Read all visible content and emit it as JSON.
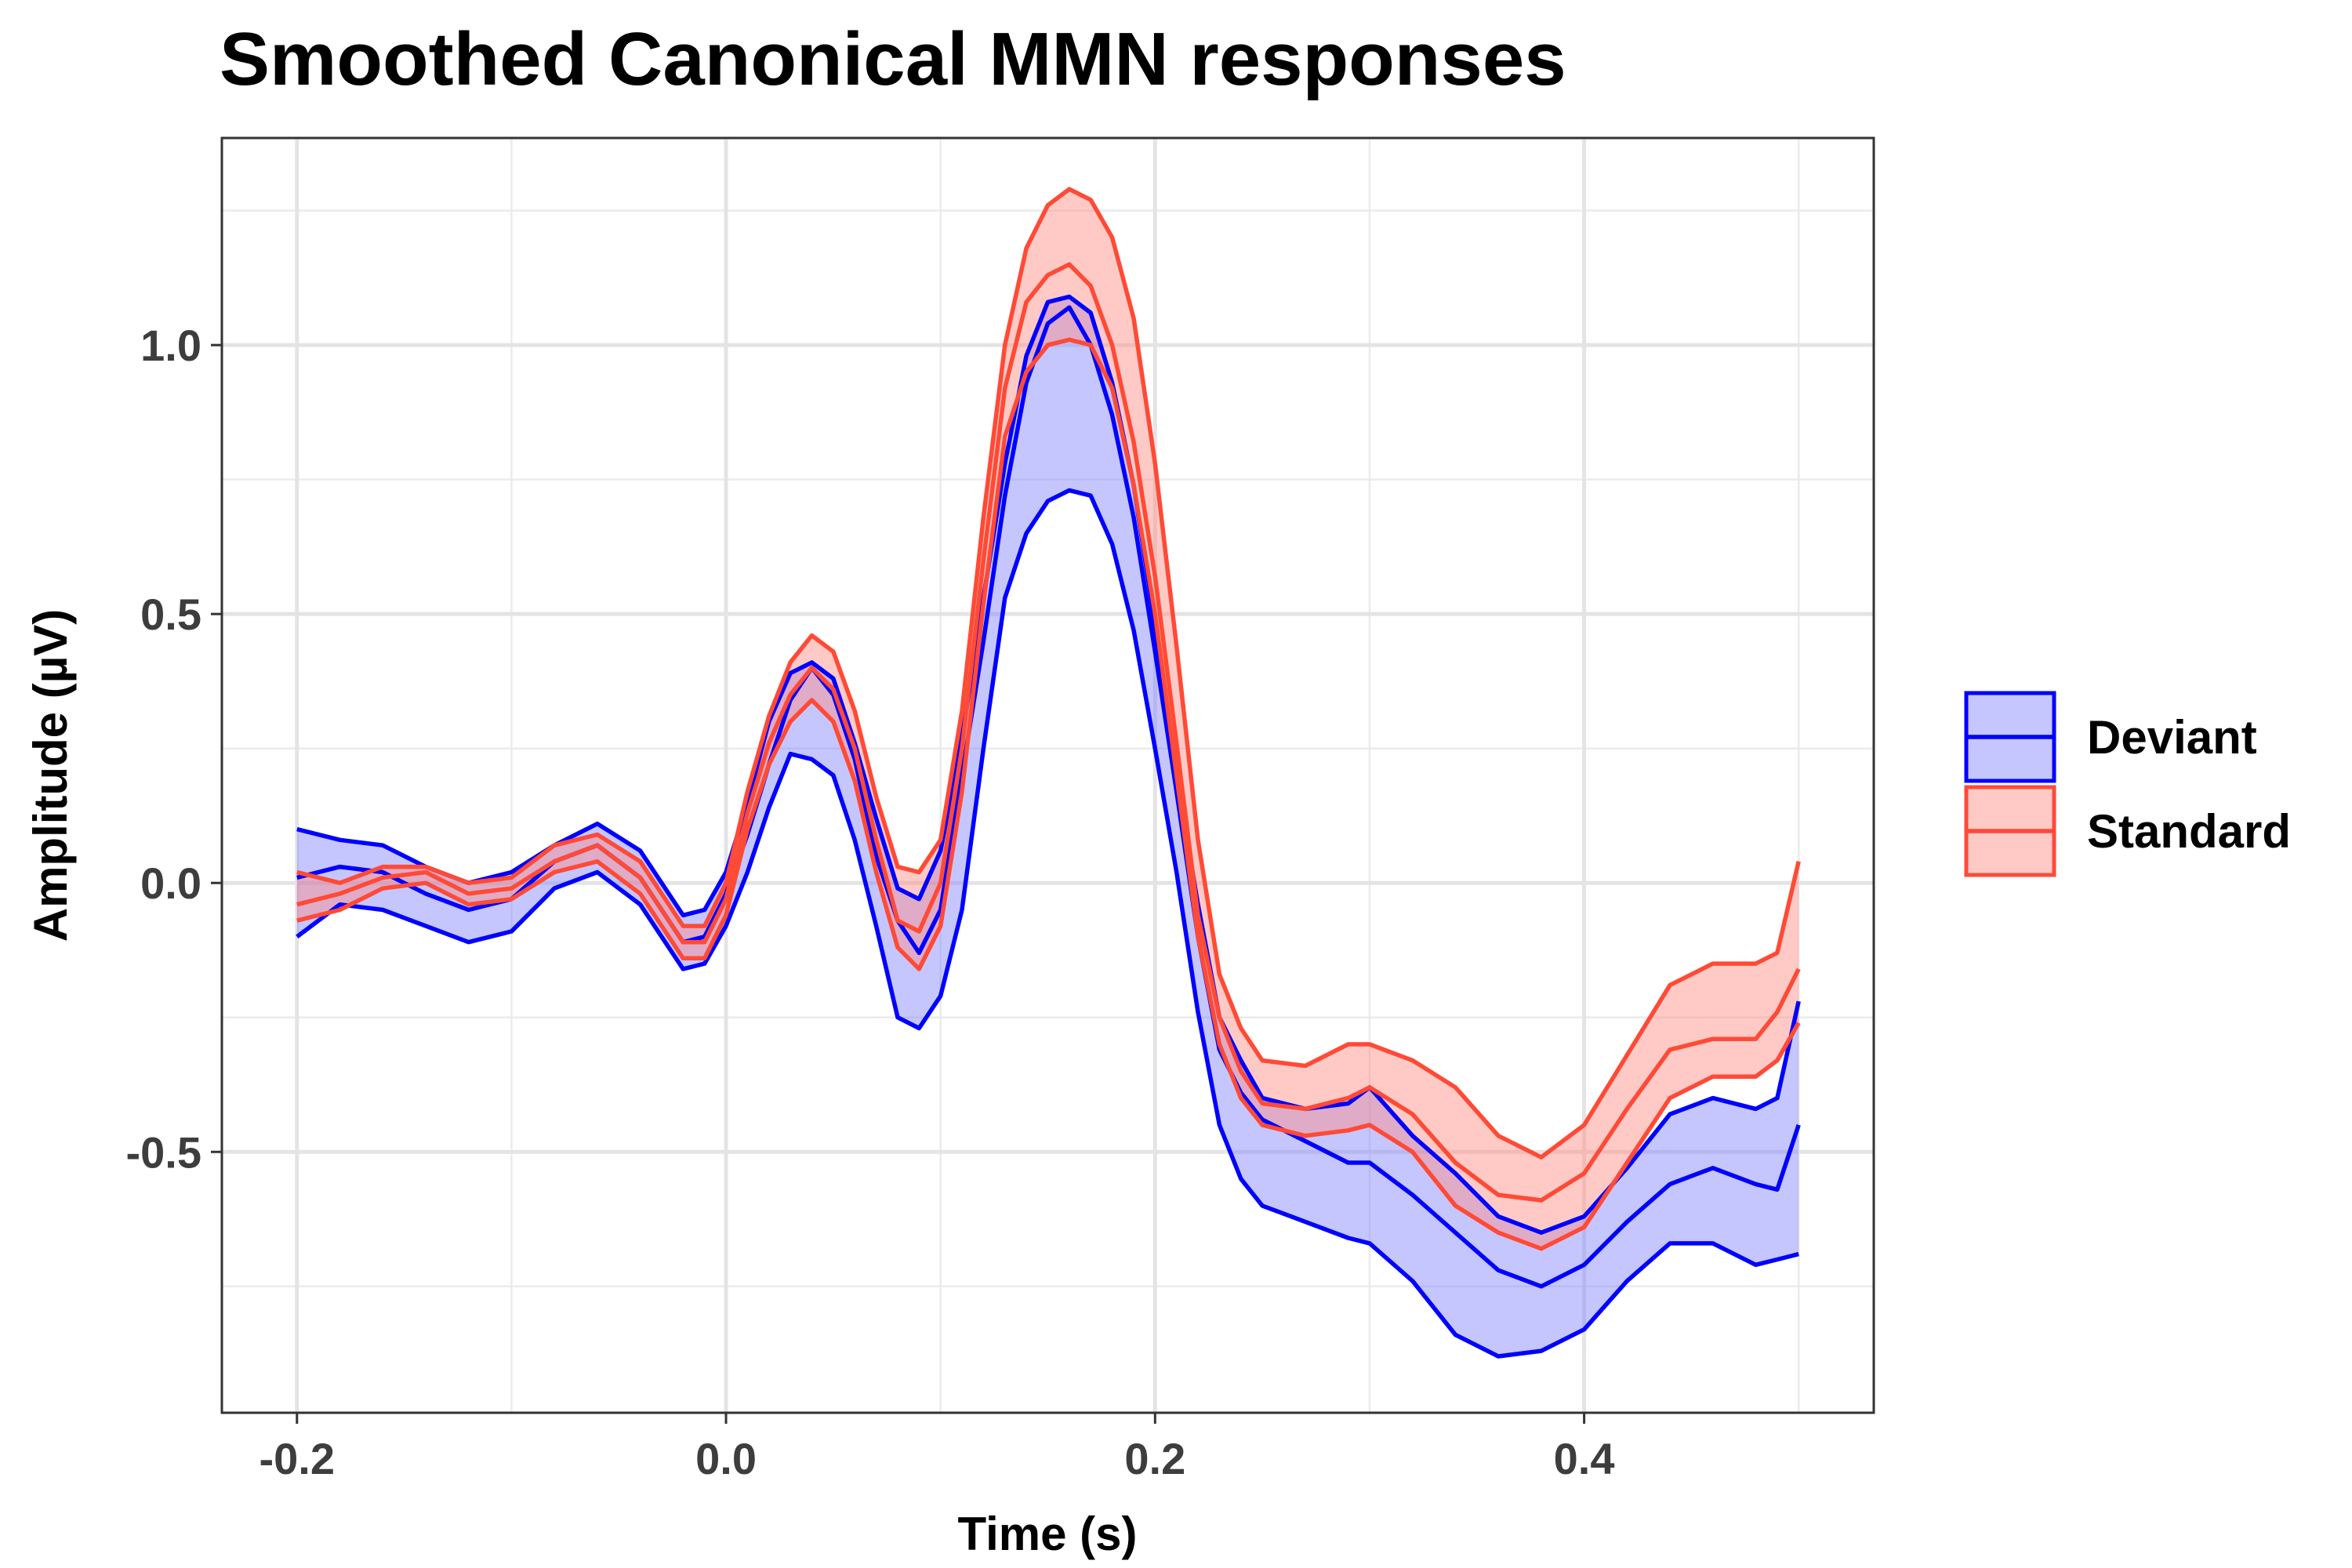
{
  "chart_data": {
    "type": "line",
    "title": "Smoothed Canonical MMN responses",
    "xlabel": "Time (s)",
    "ylabel": "Amplitude (µV)",
    "xlim": [
      -0.235,
      0.535
    ],
    "ylim": [
      -0.985,
      1.385
    ],
    "x_ticks": [
      -0.2,
      0.0,
      0.2,
      0.4
    ],
    "x_tick_labels": [
      "-0.2",
      "0.0",
      "0.2",
      "0.4"
    ],
    "y_ticks": [
      -0.5,
      0.0,
      0.5,
      1.0
    ],
    "y_tick_labels": [
      "-0.5",
      "0.0",
      "0.5",
      "1.0"
    ],
    "grid": true,
    "legend_position": "right",
    "series": [
      {
        "name": "Deviant",
        "line_color": "#0000ff",
        "fill_color": "#8080ff",
        "points": [
          [
            -0.2,
            0.01,
            -0.1,
            0.1
          ],
          [
            -0.18,
            0.03,
            -0.04,
            0.08
          ],
          [
            -0.16,
            0.02,
            -0.05,
            0.07
          ],
          [
            -0.14,
            -0.02,
            -0.08,
            0.03
          ],
          [
            -0.12,
            -0.05,
            -0.11,
            0.0
          ],
          [
            -0.1,
            -0.03,
            -0.09,
            0.02
          ],
          [
            -0.08,
            0.04,
            -0.01,
            0.07
          ],
          [
            -0.06,
            0.07,
            0.02,
            0.11
          ],
          [
            -0.04,
            0.01,
            -0.04,
            0.06
          ],
          [
            -0.02,
            -0.11,
            -0.16,
            -0.06
          ],
          [
            -0.01,
            -0.1,
            -0.15,
            -0.05
          ],
          [
            0.0,
            -0.02,
            -0.08,
            0.02
          ],
          [
            0.01,
            0.09,
            0.02,
            0.15
          ],
          [
            0.02,
            0.22,
            0.14,
            0.3
          ],
          [
            0.03,
            0.34,
            0.24,
            0.39
          ],
          [
            0.04,
            0.4,
            0.23,
            0.41
          ],
          [
            0.05,
            0.35,
            0.2,
            0.38
          ],
          [
            0.06,
            0.23,
            0.08,
            0.26
          ],
          [
            0.07,
            0.05,
            -0.08,
            0.12
          ],
          [
            0.08,
            -0.07,
            -0.25,
            -0.01
          ],
          [
            0.09,
            -0.13,
            -0.27,
            -0.03
          ],
          [
            0.1,
            -0.05,
            -0.21,
            0.06
          ],
          [
            0.11,
            0.2,
            -0.05,
            0.27
          ],
          [
            0.12,
            0.45,
            0.25,
            0.53
          ],
          [
            0.13,
            0.72,
            0.53,
            0.78
          ],
          [
            0.14,
            0.93,
            0.65,
            0.98
          ],
          [
            0.15,
            1.04,
            0.71,
            1.08
          ],
          [
            0.16,
            1.07,
            0.73,
            1.09
          ],
          [
            0.17,
            1.0,
            0.72,
            1.06
          ],
          [
            0.18,
            0.87,
            0.63,
            0.93
          ],
          [
            0.19,
            0.68,
            0.47,
            0.74
          ],
          [
            0.2,
            0.43,
            0.25,
            0.48
          ],
          [
            0.21,
            0.17,
            0.02,
            0.2
          ],
          [
            0.22,
            -0.1,
            -0.24,
            -0.04
          ],
          [
            0.23,
            -0.31,
            -0.45,
            -0.25
          ],
          [
            0.24,
            -0.39,
            -0.55,
            -0.33
          ],
          [
            0.25,
            -0.44,
            -0.6,
            -0.4
          ],
          [
            0.27,
            -0.48,
            -0.63,
            -0.42
          ],
          [
            0.29,
            -0.52,
            -0.66,
            -0.41
          ],
          [
            0.3,
            -0.52,
            -0.67,
            -0.38
          ],
          [
            0.32,
            -0.58,
            -0.74,
            -0.47
          ],
          [
            0.34,
            -0.65,
            -0.84,
            -0.54
          ],
          [
            0.36,
            -0.72,
            -0.88,
            -0.62
          ],
          [
            0.38,
            -0.75,
            -0.87,
            -0.65
          ],
          [
            0.4,
            -0.71,
            -0.83,
            -0.62
          ],
          [
            0.42,
            -0.63,
            -0.74,
            -0.53
          ],
          [
            0.44,
            -0.56,
            -0.67,
            -0.43
          ],
          [
            0.46,
            -0.53,
            -0.67,
            -0.4
          ],
          [
            0.48,
            -0.56,
            -0.71,
            -0.42
          ],
          [
            0.49,
            -0.57,
            -0.7,
            -0.4
          ],
          [
            0.5,
            -0.45,
            -0.69,
            -0.22
          ]
        ]
      },
      {
        "name": "Standard",
        "line_color": "#ff4a36",
        "fill_color": "#ff8a80",
        "points": [
          [
            -0.2,
            -0.04,
            -0.07,
            0.02
          ],
          [
            -0.18,
            -0.02,
            -0.05,
            0.0
          ],
          [
            -0.16,
            0.01,
            -0.01,
            0.03
          ],
          [
            -0.14,
            0.02,
            0.0,
            0.03
          ],
          [
            -0.12,
            -0.02,
            -0.04,
            0.0
          ],
          [
            -0.1,
            -0.01,
            -0.03,
            0.01
          ],
          [
            -0.08,
            0.04,
            0.02,
            0.07
          ],
          [
            -0.06,
            0.07,
            0.04,
            0.09
          ],
          [
            -0.04,
            0.01,
            -0.02,
            0.04
          ],
          [
            -0.02,
            -0.11,
            -0.14,
            -0.08
          ],
          [
            -0.01,
            -0.11,
            -0.14,
            -0.08
          ],
          [
            0.0,
            -0.03,
            -0.06,
            0.0
          ],
          [
            0.01,
            0.13,
            0.1,
            0.17
          ],
          [
            0.02,
            0.26,
            0.22,
            0.31
          ],
          [
            0.03,
            0.35,
            0.3,
            0.41
          ],
          [
            0.04,
            0.4,
            0.34,
            0.46
          ],
          [
            0.05,
            0.36,
            0.3,
            0.43
          ],
          [
            0.06,
            0.25,
            0.19,
            0.32
          ],
          [
            0.07,
            0.08,
            0.02,
            0.16
          ],
          [
            0.08,
            -0.07,
            -0.12,
            0.03
          ],
          [
            0.09,
            -0.09,
            -0.16,
            0.02
          ],
          [
            0.1,
            0.0,
            -0.08,
            0.08
          ],
          [
            0.11,
            0.25,
            0.17,
            0.32
          ],
          [
            0.12,
            0.6,
            0.52,
            0.68
          ],
          [
            0.13,
            0.92,
            0.83,
            1.0
          ],
          [
            0.14,
            1.08,
            0.95,
            1.18
          ],
          [
            0.15,
            1.13,
            1.0,
            1.26
          ],
          [
            0.16,
            1.15,
            1.01,
            1.29
          ],
          [
            0.17,
            1.11,
            1.0,
            1.27
          ],
          [
            0.18,
            1.0,
            0.92,
            1.2
          ],
          [
            0.19,
            0.82,
            0.74,
            1.05
          ],
          [
            0.2,
            0.57,
            0.5,
            0.78
          ],
          [
            0.21,
            0.26,
            0.2,
            0.44
          ],
          [
            0.22,
            -0.06,
            -0.1,
            0.08
          ],
          [
            0.23,
            -0.25,
            -0.3,
            -0.17
          ],
          [
            0.24,
            -0.35,
            -0.4,
            -0.27
          ],
          [
            0.25,
            -0.41,
            -0.45,
            -0.33
          ],
          [
            0.27,
            -0.42,
            -0.47,
            -0.34
          ],
          [
            0.29,
            -0.4,
            -0.46,
            -0.3
          ],
          [
            0.3,
            -0.38,
            -0.45,
            -0.3
          ],
          [
            0.32,
            -0.43,
            -0.5,
            -0.33
          ],
          [
            0.34,
            -0.52,
            -0.6,
            -0.38
          ],
          [
            0.36,
            -0.58,
            -0.65,
            -0.47
          ],
          [
            0.38,
            -0.59,
            -0.68,
            -0.51
          ],
          [
            0.4,
            -0.54,
            -0.64,
            -0.45
          ],
          [
            0.42,
            -0.42,
            -0.52,
            -0.32
          ],
          [
            0.44,
            -0.31,
            -0.4,
            -0.19
          ],
          [
            0.46,
            -0.29,
            -0.36,
            -0.15
          ],
          [
            0.48,
            -0.29,
            -0.36,
            -0.15
          ],
          [
            0.49,
            -0.24,
            -0.33,
            -0.13
          ],
          [
            0.5,
            -0.16,
            -0.26,
            0.04
          ]
        ]
      }
    ]
  }
}
